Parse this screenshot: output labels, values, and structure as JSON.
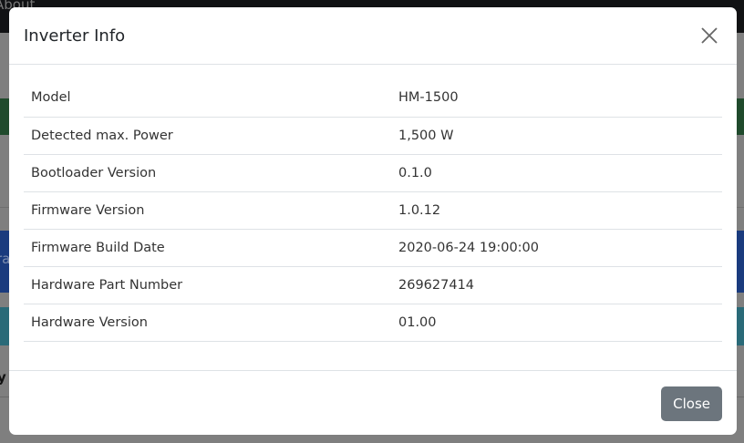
{
  "background": {
    "nav_text": "About",
    "blue_text": "ra",
    "bold_text": "y"
  },
  "modal": {
    "title": "Inverter Info",
    "close_icon": "close-x-icon",
    "rows": [
      {
        "label": "Model",
        "value": "HM-1500"
      },
      {
        "label": "Detected max. Power",
        "value": "1,500 W"
      },
      {
        "label": "Bootloader Version",
        "value": "0.1.0"
      },
      {
        "label": "Firmware Version",
        "value": "1.0.12"
      },
      {
        "label": "Firmware Build Date",
        "value": "2020-06-24 19:00:00"
      },
      {
        "label": "Hardware Part Number",
        "value": "269627414"
      },
      {
        "label": "Hardware Version",
        "value": "01.00"
      }
    ],
    "close_label": "Close"
  },
  "colors": {
    "close_button": "#6c757d"
  }
}
